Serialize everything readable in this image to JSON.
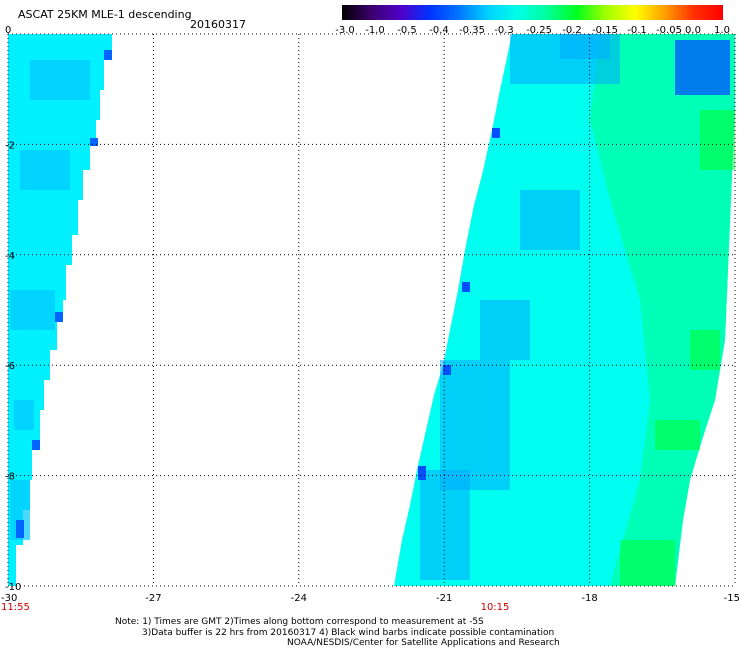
{
  "header": {
    "title": "ASCAT 25KM MLE-1 descending",
    "date": "20160317"
  },
  "colorbar": {
    "labels": [
      "-3.0",
      "-1.0",
      "-0.5",
      "-0.4",
      "-0.35",
      "-0.3",
      "-0.25",
      "-0.2",
      "-0.15",
      "-0.1",
      "-0.05",
      "0.0",
      "1.0"
    ],
    "colors": [
      "#000000",
      "#3c006e",
      "#5000c8",
      "#0032ff",
      "#0078ff",
      "#00d2ff",
      "#00ffe6",
      "#00ff9b",
      "#00ff1e",
      "#a0ff00",
      "#ffff00",
      "#ffa000",
      "#ff3000",
      "#ff0000"
    ]
  },
  "axes": {
    "y_labels": [
      "0",
      "-2",
      "-4",
      "-6",
      "-8",
      "-10"
    ],
    "x_labels": [
      "-30",
      "-27",
      "-24",
      "-21",
      "-18",
      "-15"
    ],
    "lat_range": [
      -10,
      0
    ],
    "lon_range": [
      -30,
      -15
    ]
  },
  "time_labels": [
    "11:55",
    "10:15"
  ],
  "swaths": [
    {
      "name": "left-swath",
      "colors": {
        "base": "#00f0ff",
        "dark": "#00c8ff",
        "edge": "#0066ff"
      }
    },
    {
      "name": "right-swath",
      "colors": {
        "base": "#00fff0",
        "green": "#00ffb0",
        "blue": "#00aaff",
        "deep": "#0050ff",
        "bright": "#00ff30"
      }
    }
  ],
  "notes": {
    "line1": "Note: 1) Times are GMT 2)Times along bottom correspond to measurement at -5S",
    "line2": "3)Data buffer is 22 hrs from 20160317 4) Black wind barbs indicate possible contamination",
    "line3": "NOAA/NESDIS/Center for Satellite Applications and Research"
  }
}
